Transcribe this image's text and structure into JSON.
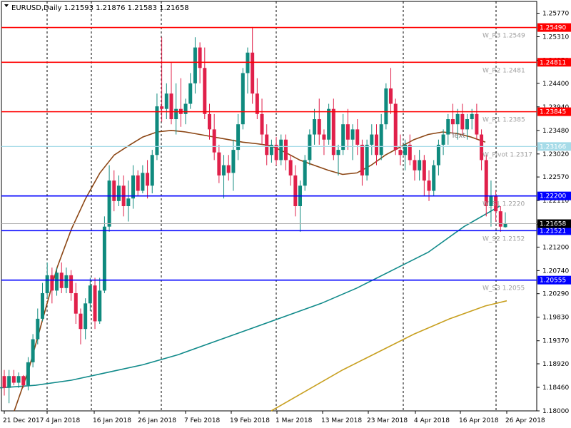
{
  "header": {
    "symbol": "EURUSD,Daily",
    "ohlc": "1.21593 1.21876 1.21583 1.21658"
  },
  "colors": {
    "bull": "#0f8a7e",
    "bear": "#e0204a",
    "resistance": "#ff0000",
    "support": "#0000ff",
    "pivot": "#a6dbe8",
    "ma_fast": "#8b4513",
    "ma_mid": "#108a8a",
    "ma_slow": "#c8a020",
    "current": "#b0b0b0"
  },
  "chart_data": {
    "type": "candlestick",
    "y_range": [
      1.18,
      1.26
    ],
    "y_ticks": [
      "1.25770",
      "1.25310",
      "1.24850",
      "1.24400",
      "1.23940",
      "1.23480",
      "1.23020",
      "1.22570",
      "1.22110",
      "1.21650",
      "1.21200",
      "1.20740",
      "1.20290",
      "1.19830",
      "1.19370",
      "1.18920",
      "1.18460",
      "1.18000"
    ],
    "x_labels": [
      "21 Dec 2017",
      "4 Jan 2018",
      "16 Jan 2018",
      "26 Jan 2018",
      "7 Feb 2018",
      "19 Feb 2018",
      "1 Mar 2018",
      "13 Mar 2018",
      "23 Mar 2018",
      "4 Apr 2018",
      "16 Apr 2018",
      "26 Apr 2018"
    ],
    "levels": [
      {
        "name": "W_R3",
        "label": "W_R3 1.2549",
        "value": 1.2549,
        "tag": "1.25490",
        "kind": "resistance"
      },
      {
        "name": "W_R2",
        "label": "W_R2 1.2481",
        "value": 1.24811,
        "tag": "1.24811",
        "kind": "resistance"
      },
      {
        "name": "W_R1",
        "label": "W_R1 1.2385",
        "value": 1.23845,
        "tag": "1.23845",
        "kind": "resistance"
      },
      {
        "name": "W_Pivot",
        "label": "W_Pivot 1.2317",
        "value": 1.23166,
        "tag": "1.23166",
        "kind": "pivot"
      },
      {
        "name": "W_S1",
        "label": "W_S1 1.2220",
        "value": 1.222,
        "tag": "1.22200",
        "kind": "support"
      },
      {
        "name": "W_S2",
        "label": "W_S2 1.2152",
        "value": 1.21521,
        "tag": "1.21521",
        "kind": "support"
      },
      {
        "name": "W_S3",
        "label": "W_S3 1.2055",
        "value": 1.20555,
        "tag": "1.20555",
        "kind": "support"
      }
    ],
    "current_price": {
      "value": 1.21658,
      "tag": "1.21658"
    },
    "annotation": "Text",
    "candles": [
      [
        1.1868,
        1.188,
        1.183,
        1.1845
      ],
      [
        1.1845,
        1.188,
        1.1815,
        1.1868
      ],
      [
        1.1868,
        1.188,
        1.185,
        1.1855
      ],
      [
        1.1855,
        1.1875,
        1.1845,
        1.1868
      ],
      [
        1.1868,
        1.187,
        1.1845,
        1.185
      ],
      [
        1.185,
        1.1905,
        1.184,
        1.1895
      ],
      [
        1.1895,
        1.195,
        1.1885,
        1.194
      ],
      [
        1.194,
        1.2,
        1.193,
        1.198
      ],
      [
        1.198,
        1.205,
        1.1975,
        1.203
      ],
      [
        1.203,
        1.209,
        1.202,
        1.2065
      ],
      [
        1.2065,
        1.208,
        1.201,
        1.2035
      ],
      [
        1.2035,
        1.208,
        1.2025,
        1.207
      ],
      [
        1.207,
        1.209,
        1.203,
        1.204
      ],
      [
        1.204,
        1.208,
        1.203,
        1.2065
      ],
      [
        1.2065,
        1.2075,
        1.2015,
        1.203
      ],
      [
        1.203,
        1.205,
        1.197,
        1.199
      ],
      [
        1.199,
        1.2,
        1.193,
        1.196
      ],
      [
        1.196,
        1.202,
        1.194,
        1.201
      ],
      [
        1.201,
        1.206,
        1.1995,
        1.2045
      ],
      [
        1.2045,
        1.206,
        1.196,
        1.1975
      ],
      [
        1.1975,
        1.206,
        1.197,
        1.2035
      ],
      [
        1.2035,
        1.218,
        1.203,
        1.216
      ],
      [
        1.216,
        1.228,
        1.215,
        1.225
      ],
      [
        1.225,
        1.227,
        1.219,
        1.221
      ],
      [
        1.221,
        1.226,
        1.22,
        1.224
      ],
      [
        1.224,
        1.226,
        1.218,
        1.22
      ],
      [
        1.22,
        1.225,
        1.217,
        1.2215
      ],
      [
        1.2215,
        1.228,
        1.2195,
        1.226
      ],
      [
        1.226,
        1.227,
        1.222,
        1.223
      ],
      [
        1.223,
        1.228,
        1.2225,
        1.2265
      ],
      [
        1.2265,
        1.229,
        1.2215,
        1.224
      ],
      [
        1.224,
        1.231,
        1.2225,
        1.23
      ],
      [
        1.23,
        1.242,
        1.229,
        1.2395
      ],
      [
        1.2395,
        1.253,
        1.2365,
        1.239
      ],
      [
        1.239,
        1.244,
        1.237,
        1.242
      ],
      [
        1.242,
        1.248,
        1.236,
        1.237
      ],
      [
        1.237,
        1.244,
        1.234,
        1.239
      ],
      [
        1.239,
        1.245,
        1.2355,
        1.238
      ],
      [
        1.238,
        1.241,
        1.236,
        1.24
      ],
      [
        1.24,
        1.246,
        1.239,
        1.244
      ],
      [
        1.244,
        1.253,
        1.242,
        1.251
      ],
      [
        1.251,
        1.252,
        1.244,
        1.247
      ],
      [
        1.247,
        1.251,
        1.237,
        1.238
      ],
      [
        1.238,
        1.24,
        1.233,
        1.235
      ],
      [
        1.235,
        1.238,
        1.229,
        1.2305
      ],
      [
        1.2305,
        1.232,
        1.2245,
        1.226
      ],
      [
        1.226,
        1.23,
        1.2215,
        1.228
      ],
      [
        1.228,
        1.23,
        1.225,
        1.2265
      ],
      [
        1.2265,
        1.233,
        1.223,
        1.231
      ],
      [
        1.231,
        1.238,
        1.229,
        1.236
      ],
      [
        1.236,
        1.247,
        1.235,
        1.246
      ],
      [
        1.246,
        1.251,
        1.242,
        1.25
      ],
      [
        1.25,
        1.255,
        1.24,
        1.242
      ],
      [
        1.242,
        1.245,
        1.237,
        1.238
      ],
      [
        1.238,
        1.241,
        1.232,
        1.234
      ],
      [
        1.234,
        1.236,
        1.228,
        1.23
      ],
      [
        1.23,
        1.233,
        1.2285,
        1.232
      ],
      [
        1.232,
        1.2335,
        1.228,
        1.229
      ],
      [
        1.229,
        1.234,
        1.228,
        1.233
      ],
      [
        1.233,
        1.234,
        1.227,
        1.229
      ],
      [
        1.229,
        1.23,
        1.224,
        1.226
      ],
      [
        1.226,
        1.228,
        1.218,
        1.22
      ],
      [
        1.22,
        1.225,
        1.215,
        1.224
      ],
      [
        1.224,
        1.23,
        1.223,
        1.229
      ],
      [
        1.229,
        1.235,
        1.228,
        1.234
      ],
      [
        1.234,
        1.239,
        1.232,
        1.237
      ],
      [
        1.237,
        1.241,
        1.232,
        1.234
      ],
      [
        1.234,
        1.235,
        1.23,
        1.233
      ],
      [
        1.233,
        1.24,
        1.232,
        1.239
      ],
      [
        1.239,
        1.241,
        1.229,
        1.23
      ],
      [
        1.23,
        1.232,
        1.226,
        1.231
      ],
      [
        1.231,
        1.238,
        1.23,
        1.236
      ],
      [
        1.236,
        1.239,
        1.231,
        1.233
      ],
      [
        1.233,
        1.236,
        1.229,
        1.235
      ],
      [
        1.235,
        1.237,
        1.23,
        1.232
      ],
      [
        1.232,
        1.233,
        1.224,
        1.226
      ],
      [
        1.226,
        1.233,
        1.225,
        1.232
      ],
      [
        1.232,
        1.236,
        1.23,
        1.234
      ],
      [
        1.234,
        1.236,
        1.228,
        1.23
      ],
      [
        1.23,
        1.238,
        1.229,
        1.236
      ],
      [
        1.236,
        1.244,
        1.235,
        1.243
      ],
      [
        1.243,
        1.247,
        1.238,
        1.24
      ],
      [
        1.24,
        1.241,
        1.23,
        1.231
      ],
      [
        1.231,
        1.234,
        1.228,
        1.23
      ],
      [
        1.23,
        1.233,
        1.227,
        1.232
      ],
      [
        1.232,
        1.234,
        1.228,
        1.229
      ],
      [
        1.229,
        1.23,
        1.225,
        1.227
      ],
      [
        1.227,
        1.231,
        1.225,
        1.229
      ],
      [
        1.229,
        1.23,
        1.222,
        1.225
      ],
      [
        1.225,
        1.227,
        1.221,
        1.223
      ],
      [
        1.223,
        1.229,
        1.222,
        1.228
      ],
      [
        1.228,
        1.233,
        1.226,
        1.232
      ],
      [
        1.232,
        1.235,
        1.23,
        1.234
      ],
      [
        1.234,
        1.238,
        1.232,
        1.237
      ],
      [
        1.237,
        1.24,
        1.234,
        1.236
      ],
      [
        1.236,
        1.239,
        1.233,
        1.238
      ],
      [
        1.238,
        1.24,
        1.234,
        1.235
      ],
      [
        1.235,
        1.238,
        1.233,
        1.237
      ],
      [
        1.237,
        1.239,
        1.235,
        1.238
      ],
      [
        1.238,
        1.24,
        1.233,
        1.234
      ],
      [
        1.234,
        1.235,
        1.227,
        1.229
      ],
      [
        1.229,
        1.23,
        1.218,
        1.22
      ],
      [
        1.22,
        1.225,
        1.216,
        1.222
      ],
      [
        1.222,
        1.223,
        1.217,
        1.219
      ],
      [
        1.219,
        1.22,
        1.215,
        1.216
      ],
      [
        1.2159,
        1.2188,
        1.2158,
        1.2166
      ]
    ],
    "ma_fast": [
      [
        20,
        1.18
      ],
      [
        40,
        1.188
      ],
      [
        60,
        1.198
      ],
      [
        80,
        1.208
      ],
      [
        100,
        1.2155
      ],
      [
        120,
        1.2215
      ],
      [
        140,
        1.2265
      ],
      [
        160,
        1.23
      ],
      [
        180,
        1.2318
      ],
      [
        200,
        1.2335
      ],
      [
        220,
        1.2345
      ],
      [
        240,
        1.2348
      ],
      [
        260,
        1.2345
      ],
      [
        280,
        1.234
      ],
      [
        300,
        1.2335
      ],
      [
        320,
        1.233
      ],
      [
        340,
        1.2325
      ],
      [
        360,
        1.2322
      ],
      [
        380,
        1.2318
      ],
      [
        400,
        1.2305
      ],
      [
        420,
        1.229
      ],
      [
        440,
        1.228
      ],
      [
        460,
        1.227
      ],
      [
        480,
        1.2262
      ],
      [
        500,
        1.2265
      ],
      [
        520,
        1.228
      ],
      [
        540,
        1.23
      ],
      [
        560,
        1.2315
      ],
      [
        580,
        1.233
      ],
      [
        600,
        1.234
      ],
      [
        620,
        1.2345
      ],
      [
        640,
        1.2342
      ],
      [
        660,
        1.2335
      ],
      [
        680,
        1.2325
      ]
    ],
    "ma_mid": [
      [
        0,
        1.1845
      ],
      [
        50,
        1.185
      ],
      [
        100,
        1.186
      ],
      [
        150,
        1.1875
      ],
      [
        200,
        1.189
      ],
      [
        250,
        1.191
      ],
      [
        300,
        1.1935
      ],
      [
        350,
        1.196
      ],
      [
        400,
        1.1985
      ],
      [
        450,
        1.201
      ],
      [
        500,
        1.204
      ],
      [
        550,
        1.2075
      ],
      [
        600,
        1.211
      ],
      [
        650,
        1.216
      ],
      [
        700,
        1.22
      ]
    ],
    "ma_slow": [
      [
        380,
        1.18
      ],
      [
        430,
        1.184
      ],
      [
        480,
        1.188
      ],
      [
        530,
        1.1915
      ],
      [
        580,
        1.195
      ],
      [
        630,
        1.198
      ],
      [
        680,
        1.2005
      ],
      [
        710,
        1.2015
      ]
    ]
  }
}
